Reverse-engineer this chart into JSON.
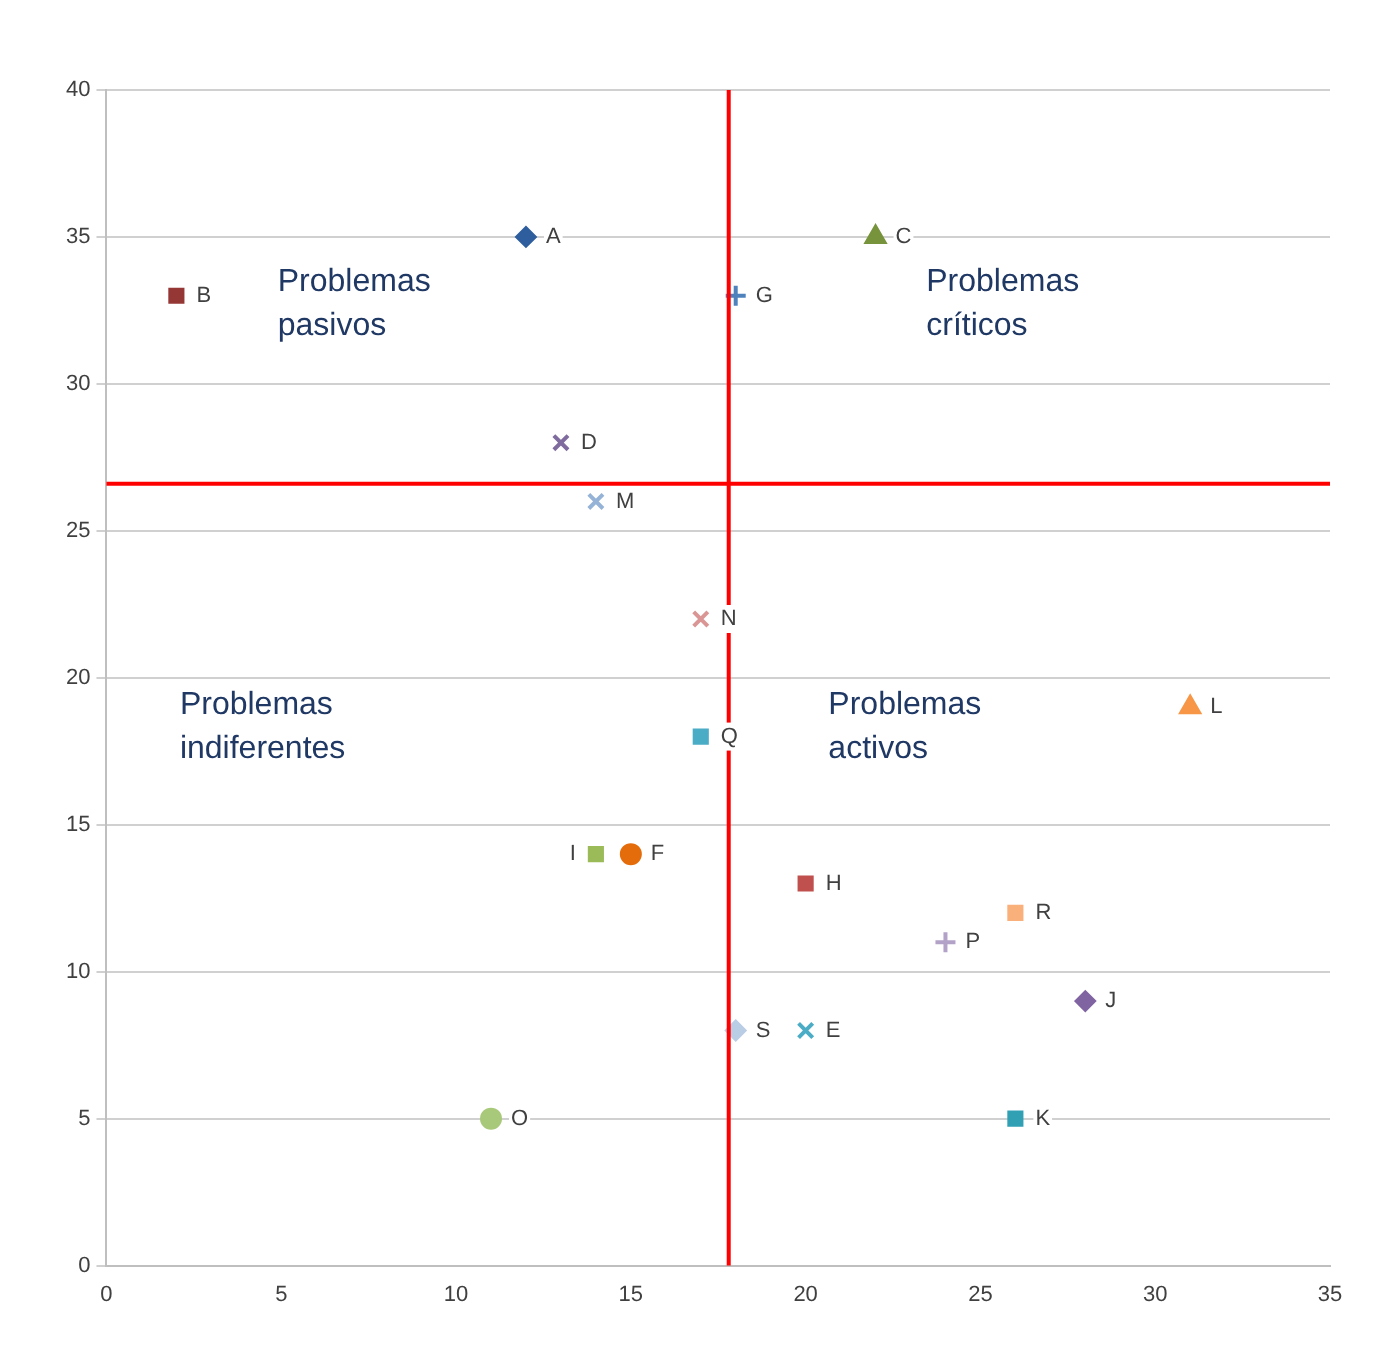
{
  "chart_data": {
    "type": "scatter",
    "xlim": [
      0,
      35
    ],
    "xticks": [
      0,
      5,
      10,
      15,
      20,
      25,
      30,
      35
    ],
    "ylim": [
      0,
      40
    ],
    "yticks": [
      0,
      5,
      10,
      15,
      20,
      25,
      30,
      35,
      40
    ],
    "grid": "y",
    "legend": false,
    "series": [
      {
        "name": "A",
        "color": "#2e5e9e",
        "marker": "diamond",
        "x": [
          12
        ],
        "values": [
          35
        ]
      },
      {
        "name": "B",
        "color": "#953735",
        "marker": "square",
        "x": [
          2
        ],
        "values": [
          33
        ]
      },
      {
        "name": "C",
        "color": "#77933c",
        "marker": "triangle",
        "x": [
          22
        ],
        "values": [
          35
        ]
      },
      {
        "name": "D",
        "color": "#7f6b9e",
        "marker": "cross",
        "x": [
          13
        ],
        "values": [
          28
        ]
      },
      {
        "name": "E",
        "color": "#4bacc6",
        "marker": "cross",
        "x": [
          20
        ],
        "values": [
          8
        ]
      },
      {
        "name": "F",
        "color": "#e46c0a",
        "marker": "circle",
        "x": [
          15
        ],
        "values": [
          14
        ]
      },
      {
        "name": "G",
        "color": "#4f81bd",
        "marker": "plus",
        "x": [
          18
        ],
        "values": [
          33
        ]
      },
      {
        "name": "H",
        "color": "#c0504d",
        "marker": "square",
        "x": [
          20
        ],
        "values": [
          13
        ]
      },
      {
        "name": "I",
        "color": "#9bbb59",
        "marker": "square",
        "x": [
          14
        ],
        "values": [
          14
        ]
      },
      {
        "name": "J",
        "color": "#8064a2",
        "marker": "diamond",
        "x": [
          28
        ],
        "values": [
          9
        ]
      },
      {
        "name": "K",
        "color": "#31a0b5",
        "marker": "square",
        "x": [
          26
        ],
        "values": [
          5
        ]
      },
      {
        "name": "L",
        "color": "#f79646",
        "marker": "triangle",
        "x": [
          31
        ],
        "values": [
          19
        ]
      },
      {
        "name": "M",
        "color": "#95b3d7",
        "marker": "cross",
        "x": [
          14
        ],
        "values": [
          26
        ]
      },
      {
        "name": "N",
        "color": "#d99694",
        "marker": "cross",
        "x": [
          17
        ],
        "values": [
          22
        ]
      },
      {
        "name": "O",
        "color": "#a9c97a",
        "marker": "circle",
        "x": [
          11
        ],
        "values": [
          5
        ]
      },
      {
        "name": "P",
        "color": "#b3a2c7",
        "marker": "plus",
        "x": [
          24
        ],
        "values": [
          11
        ]
      },
      {
        "name": "Q",
        "color": "#4bacc6",
        "marker": "square",
        "x": [
          17
        ],
        "values": [
          18
        ]
      },
      {
        "name": "R",
        "color": "#fab07a",
        "marker": "square",
        "x": [
          26
        ],
        "values": [
          12
        ]
      },
      {
        "name": "S",
        "color": "#b9cde5",
        "marker": "diamond",
        "x": [
          18
        ],
        "values": [
          8
        ]
      }
    ],
    "ref_lines": [
      {
        "axis": "x",
        "value": 17.8,
        "color": "#ff0000"
      },
      {
        "axis": "y",
        "value": 26.6,
        "color": "#ff0000"
      }
    ],
    "annotations": [
      "Problemas\npasivos",
      "Problemas\ncríticos",
      "Problemas\nindiferentes",
      "Problemas\nactivos"
    ]
  }
}
